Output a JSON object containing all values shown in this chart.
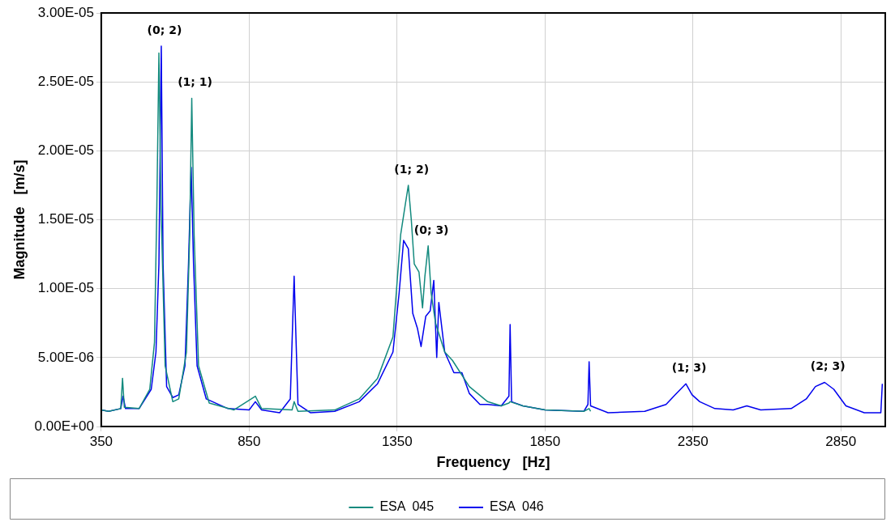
{
  "chart_data": {
    "type": "line",
    "xlabel": "Frequency   [Hz]",
    "ylabel": "Magnitude   [m/s]",
    "xlim": [
      350,
      3000
    ],
    "xticks": [
      350,
      850,
      1350,
      1850,
      2350,
      2850
    ],
    "ylim": [
      0,
      3e-05
    ],
    "yticks": [
      {
        "value": 0,
        "label": "0.00E+00"
      },
      {
        "value": 5e-06,
        "label": "5.00E-06"
      },
      {
        "value": 1e-05,
        "label": "1.00E-05"
      },
      {
        "value": 1.5e-05,
        "label": "1.50E-05"
      },
      {
        "value": 2e-05,
        "label": "2.00E-05"
      },
      {
        "value": 2.5e-05,
        "label": "2.50E-05"
      },
      {
        "value": 3e-05,
        "label": "3.00E-05"
      }
    ],
    "grid": true,
    "legend": "bottom",
    "marker": "none",
    "line_style": "solid",
    "series": [
      {
        "name": "ESA  045",
        "color": "#138a7e",
        "x": [
          350,
          375,
          416,
          422,
          428,
          478,
          514,
          530,
          538,
          545,
          552,
          566,
          592,
          612,
          638,
          649,
          656,
          664,
          679,
          715,
          798,
          871,
          892,
          995,
          1002,
          1015,
          1139,
          1222,
          1284,
          1336,
          1362,
          1377,
          1388,
          1398,
          1408,
          1424,
          1436,
          1444,
          1455,
          1465,
          1480,
          1511,
          1537,
          1594,
          1656,
          1702,
          1728,
          1732,
          1775,
          1850,
          1981,
          1999,
          2004
        ],
        "values": [
          1.2e-06,
          1.1e-06,
          1.3e-06,
          3.5e-06,
          1.4e-06,
          1.3e-06,
          2.7e-06,
          6.1e-06,
          1.6e-05,
          2.71e-05,
          1.6e-05,
          4.4e-06,
          1.8e-06,
          2e-06,
          5.4e-06,
          1.39e-05,
          2.38e-05,
          1.39e-05,
          4.4e-06,
          1.7e-06,
          1.2e-06,
          2.2e-06,
          1.3e-06,
          1.2e-06,
          1.8e-06,
          1.1e-06,
          1.2e-06,
          2e-06,
          3.5e-06,
          6.5e-06,
          1.39e-05,
          1.6e-05,
          1.75e-05,
          1.5e-05,
          1.18e-05,
          1.12e-05,
          8.6e-06,
          1.09e-05,
          1.31e-05,
          9.7e-06,
          7.5e-06,
          5.4e-06,
          4.8e-06,
          2.9e-06,
          1.8e-06,
          1.5e-06,
          1.7e-06,
          1.8e-06,
          1.5e-06,
          1.2e-06,
          1.1e-06,
          1.3e-06,
          1.1e-06
        ]
      },
      {
        "name": "ESA  046",
        "color": "#0000ee",
        "x": [
          350,
          375,
          416,
          424,
          432,
          478,
          519,
          535,
          545,
          553,
          559,
          571,
          592,
          612,
          633,
          645,
          654,
          662,
          674,
          705,
          778,
          850,
          871,
          892,
          953,
          989,
          1002,
          1015,
          1057,
          1139,
          1222,
          1284,
          1336,
          1357,
          1372,
          1388,
          1403,
          1419,
          1431,
          1447,
          1462,
          1474,
          1484,
          1491,
          1511,
          1542,
          1569,
          1594,
          1630,
          1656,
          1702,
          1728,
          1732,
          1737,
          1775,
          1850,
          1981,
          1995,
          1999,
          2004,
          2063,
          2187,
          2259,
          2290,
          2326,
          2347,
          2373,
          2424,
          2486,
          2532,
          2579,
          2682,
          2733,
          2764,
          2795,
          2826,
          2867,
          2929,
          2985,
          2990
        ],
        "values": [
          1.2e-06,
          1.1e-06,
          1.3e-06,
          2.2e-06,
          1.3e-06,
          1.3e-06,
          2.7e-06,
          5.4e-06,
          1.18e-05,
          2.76e-05,
          1.18e-05,
          2.9e-06,
          2.1e-06,
          2.3e-06,
          4.4e-06,
          1.18e-05,
          1.88e-05,
          1.18e-05,
          4.4e-06,
          2e-06,
          1.3e-06,
          1.2e-06,
          1.8e-06,
          1.2e-06,
          1e-06,
          2e-06,
          1.09e-05,
          1.6e-06,
          1e-06,
          1.1e-06,
          1.8e-06,
          3.1e-06,
          5.4e-06,
          9.7e-06,
          1.35e-05,
          1.29e-05,
          8.2e-06,
          7.1e-06,
          5.8e-06,
          8e-06,
          8.4e-06,
          1.06e-05,
          5e-06,
          9e-06,
          5.4e-06,
          3.9e-06,
          3.9e-06,
          2.4e-06,
          1.6e-06,
          1.6e-06,
          1.5e-06,
          2.2e-06,
          7.4e-06,
          1.8e-06,
          1.5e-06,
          1.2e-06,
          1.1e-06,
          1.6e-06,
          4.7e-06,
          1.5e-06,
          1e-06,
          1.1e-06,
          1.6e-06,
          2.3e-06,
          3.1e-06,
          2.3e-06,
          1.8e-06,
          1.3e-06,
          1.2e-06,
          1.5e-06,
          1.2e-06,
          1.3e-06,
          2e-06,
          2.9e-06,
          3.2e-06,
          2.7e-06,
          1.5e-06,
          1e-06,
          1e-06,
          3.1e-06
        ]
      }
    ],
    "annotations": [
      {
        "text": "(0; 2)",
        "x": 553,
        "y": 2.76e-05
      },
      {
        "text": "(1; 1)",
        "x": 656,
        "y": 2.38e-05
      },
      {
        "text": "(1; 2)",
        "x": 1388,
        "y": 1.75e-05
      },
      {
        "text": "(0; 3)",
        "x": 1455,
        "y": 1.31e-05
      },
      {
        "text": "(1; 3)",
        "x": 2326,
        "y": 3.1e-06
      },
      {
        "text": "(2; 3)",
        "x": 2795,
        "y": 3.2e-06
      }
    ]
  }
}
